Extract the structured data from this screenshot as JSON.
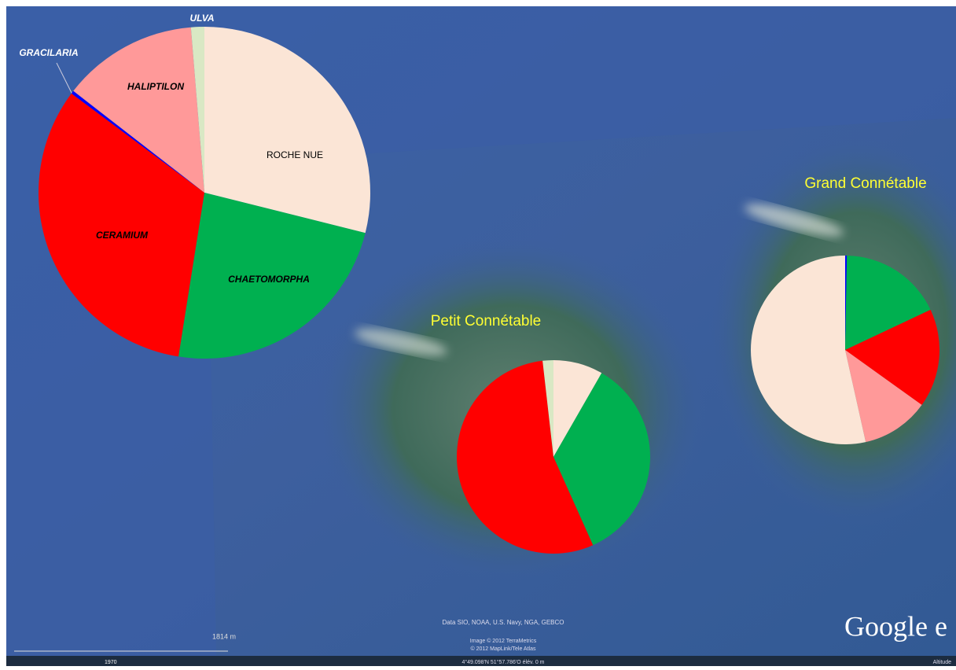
{
  "chart_data": [
    {
      "type": "pie",
      "categories": [
        "ROCHE NUE",
        "CHAETOMORPHA",
        "CERAMIUM",
        "GRACILARIA",
        "HALIPTILON",
        "ULVA"
      ],
      "values": [
        28.9,
        23.6,
        32.7,
        0.3,
        13.2,
        1.3
      ],
      "colors": [
        "#fbe5d6",
        "#00b050",
        "#ff0000",
        "#0000ff",
        "#ff9999",
        "#d9e8c4"
      ]
    },
    {
      "type": "pie",
      "title": "Petit Connétable",
      "values": [
        8.3,
        35,
        54.9,
        1.8
      ],
      "colors": [
        "#fbe5d6",
        "#00b050",
        "#ff0000",
        "#d9e8c4"
      ]
    },
    {
      "type": "pie",
      "title": "Grand Connétable",
      "values": [
        0.3,
        17.7,
        16.9,
        11.6,
        53.5
      ],
      "colors": [
        "#0000ff",
        "#00b050",
        "#ff0000",
        "#ff9999",
        "#fbe5d6"
      ]
    }
  ],
  "map": {
    "attribution": [
      "Data SIO, NOAA, U.S. Navy, NGA, GEBCO",
      "Image © 2012 TerraMetrics",
      "© 2012 MapLink/Tele Atlas"
    ],
    "logo": "Google e",
    "scale": "1814 m",
    "year": "1970",
    "coordinates": "4°49.098'N  51°57.786'O  élév.   0 m",
    "altitude": "Altitude"
  }
}
